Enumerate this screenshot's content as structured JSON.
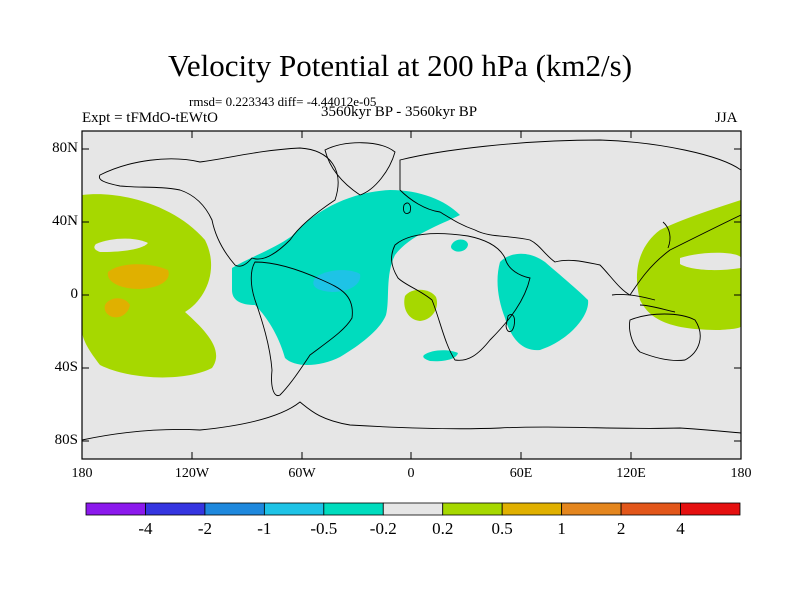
{
  "title": "Velocity Potential at 200 hPa (km2/s)",
  "stats": "rmsd= 0.223343 diff= -4.44012e-05",
  "experiment": "Expt = tFMdO-tEWtO",
  "period": "3560kyr BP - 3560kyr BP",
  "season": "JJA",
  "lat_labels": [
    "80N",
    "40N",
    "0",
    "40S",
    "80S"
  ],
  "lon_labels": [
    "180",
    "120W",
    "60W",
    "0",
    "60E",
    "120E",
    "180"
  ],
  "colorbar": {
    "labels": [
      "-4",
      "-2",
      "-1",
      "-0.5",
      "-0.2",
      "0.2",
      "0.5",
      "1",
      "2",
      "4"
    ],
    "colors": [
      "#8b19ec",
      "#3535e0",
      "#1e88dd",
      "#1ec3e6",
      "#00dcbe",
      "#e6e6e6",
      "#a6d800",
      "#e0b000",
      "#e4861e",
      "#e2561a",
      "#e51010"
    ]
  },
  "colors": {
    "background": "#e6e6e6",
    "positive_weak": "#a6d800",
    "positive_mid": "#e0b000",
    "negative_weak": "#00dcbe",
    "negative_mid": "#1ec3e6"
  }
}
